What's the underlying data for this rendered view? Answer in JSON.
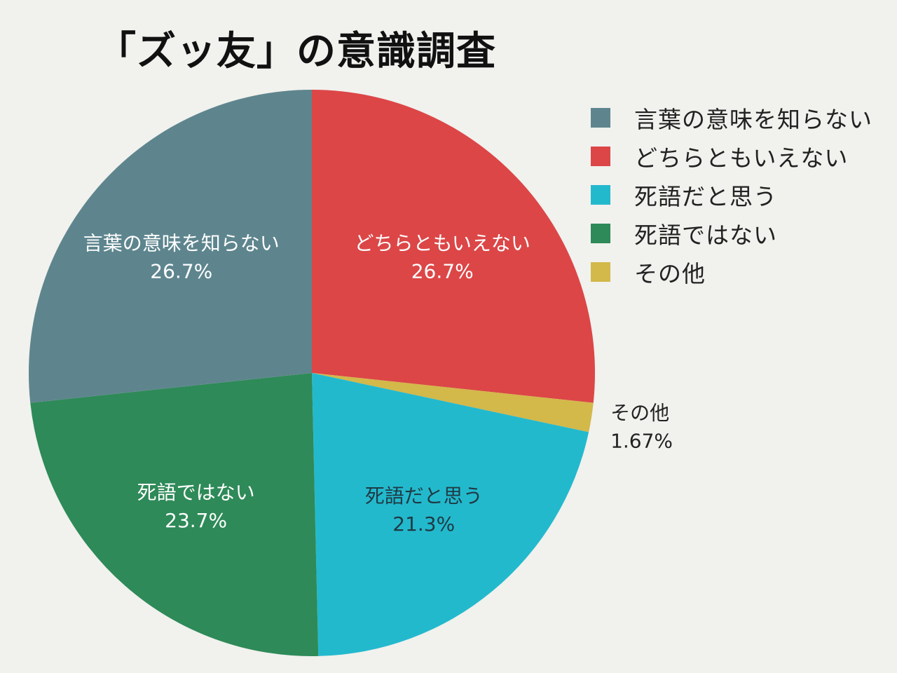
{
  "title": "「ズッ友」の意識調査",
  "chart_data": {
    "type": "pie",
    "title": "「ズッ友」の意識調査",
    "legend_position": "right",
    "start_angle_deg": 0,
    "direction": "clockwise",
    "slices": [
      {
        "label": "言葉の意味を知らない",
        "value": 26.7,
        "value_label": "26.7%",
        "color": "#5e858e",
        "text_color": "#ffffff"
      },
      {
        "label": "どちらともいえない",
        "value": 26.7,
        "value_label": "26.7%",
        "color": "#dc4647",
        "text_color": "#ffffff"
      },
      {
        "label": "死語だと思う",
        "value": 21.3,
        "value_label": "21.3%",
        "color": "#23b9cd",
        "text_color": "#1f3a44"
      },
      {
        "label": "死語ではない",
        "value": 23.7,
        "value_label": "23.7%",
        "color": "#2e8a58",
        "text_color": "#ffffff"
      },
      {
        "label": "その他",
        "value": 1.67,
        "value_label": "1.67%",
        "color": "#d3b84a",
        "text_color": "#222222"
      }
    ],
    "plot_order": [
      "どちらともいえない",
      "その他",
      "死語だと思う",
      "死語ではない",
      "言葉の意味を知らない"
    ]
  }
}
